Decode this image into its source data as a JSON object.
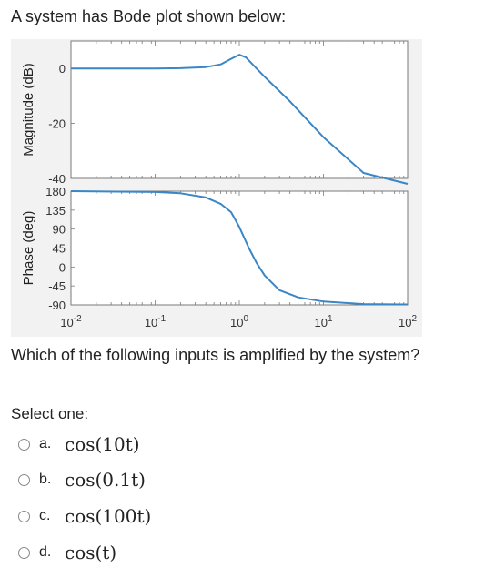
{
  "question": {
    "intro": "A system has Bode plot shown below:",
    "text": "Which of the following inputs is amplified by the system?",
    "select_label": "Select one:"
  },
  "options": [
    {
      "letter": "a.",
      "expr": "cos(10t)"
    },
    {
      "letter": "b.",
      "expr": "cos(0.1t)"
    },
    {
      "letter": "c.",
      "expr": "cos(100t)"
    },
    {
      "letter": "d.",
      "expr": "cos(t)"
    }
  ],
  "chart_data": [
    {
      "type": "line",
      "ylabel": "Magnitude (dB)",
      "xscale": "log",
      "xlim": [
        0.01,
        100
      ],
      "ylim": [
        -40,
        10
      ],
      "yticks": [
        "0",
        "-20",
        "-40"
      ],
      "series": [
        {
          "x": [
            0.01,
            0.1,
            0.2,
            0.4,
            0.6,
            0.8,
            1.0,
            1.2,
            1.6,
            2,
            4,
            10,
            30,
            100
          ],
          "y": [
            0,
            0,
            0.1,
            0.5,
            1.5,
            3.5,
            5,
            4,
            0,
            -3,
            -12,
            -25,
            -38,
            -42
          ]
        }
      ],
      "color": "#3a86c6"
    },
    {
      "type": "line",
      "ylabel": "Phase (deg)",
      "xlabel": "",
      "xscale": "log",
      "xlim": [
        0.01,
        100
      ],
      "ylim": [
        -90,
        180
      ],
      "yticks": [
        "180",
        "135",
        "90",
        "45",
        "0",
        "-45",
        "-90"
      ],
      "xticks": [
        {
          "base": "10",
          "exp": "-2"
        },
        {
          "base": "10",
          "exp": "-1"
        },
        {
          "base": "10",
          "exp": "0"
        },
        {
          "base": "10",
          "exp": "1"
        },
        {
          "base": "10",
          "exp": "2"
        }
      ],
      "series": [
        {
          "x": [
            0.01,
            0.1,
            0.2,
            0.4,
            0.6,
            0.8,
            1.0,
            1.3,
            1.6,
            2,
            3,
            5,
            10,
            30,
            100
          ],
          "y": [
            180,
            178,
            175,
            165,
            150,
            130,
            95,
            45,
            10,
            -20,
            -55,
            -72,
            -82,
            -88,
            -89
          ]
        }
      ],
      "color": "#3a86c6"
    }
  ]
}
